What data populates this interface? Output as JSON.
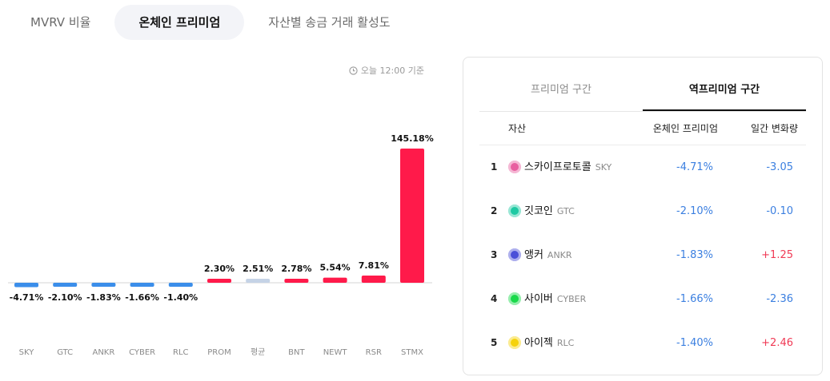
{
  "tabs": [
    {
      "label": "MVRV 비율",
      "active": false
    },
    {
      "label": "온체인 프리미엄",
      "active": true
    },
    {
      "label": "자산별 송금 거래 활성도",
      "active": false
    }
  ],
  "asof": {
    "label": "오늘 12:00 기준",
    "icon": "clock-icon"
  },
  "colors": {
    "positive_bar": "#ff1a4a",
    "negative_bar": "#3b8eea",
    "average_bar": "#c5d3e6",
    "negative_text": "#3b7fe0",
    "positive_text": "#f03a55"
  },
  "chart_data": {
    "type": "bar",
    "categories": [
      "SKY",
      "GTC",
      "ANKR",
      "CYBER",
      "RLC",
      "PROM",
      "평균",
      "BNT",
      "NEWT",
      "RSR",
      "STMX"
    ],
    "values": [
      -4.71,
      -2.1,
      -1.83,
      -1.66,
      -1.4,
      2.3,
      2.51,
      2.78,
      5.54,
      7.81,
      145.18
    ],
    "value_labels": [
      "-4.71%",
      "-2.10%",
      "-1.83%",
      "-1.66%",
      "-1.40%",
      "2.30%",
      "2.51%",
      "2.78%",
      "5.54%",
      "7.81%",
      "145.18%"
    ],
    "title": "",
    "xlabel": "",
    "ylabel": "",
    "grid": false
  },
  "panel": {
    "tabs": [
      {
        "label": "프리미엄 구간",
        "active": false
      },
      {
        "label": "역프리미엄 구간",
        "active": true
      }
    ],
    "columns": {
      "asset": "자산",
      "premium": "온체인 프리미엄",
      "change": "일간 변화량"
    },
    "rows": [
      {
        "rank": "1",
        "name": "스카이프로토콜",
        "symbol": "SKY",
        "premium": "-4.71%",
        "change": "-3.05",
        "icon": "sky-coin-icon",
        "icon_color": "#e85fa0"
      },
      {
        "rank": "2",
        "name": "깃코인",
        "symbol": "GTC",
        "premium": "-2.10%",
        "change": "-0.10",
        "icon": "gtc-coin-icon",
        "icon_color": "#1ec9a3"
      },
      {
        "rank": "3",
        "name": "앵커",
        "symbol": "ANKR",
        "premium": "-1.83%",
        "change": "+1.25",
        "icon": "ankr-coin-icon",
        "icon_color": "#4a4fd8"
      },
      {
        "rank": "4",
        "name": "사이버",
        "symbol": "CYBER",
        "premium": "-1.66%",
        "change": "-2.36",
        "icon": "cyber-coin-icon",
        "icon_color": "#19d94a"
      },
      {
        "rank": "5",
        "name": "아이젝",
        "symbol": "RLC",
        "premium": "-1.40%",
        "change": "+2.46",
        "icon": "rlc-coin-icon",
        "icon_color": "#f5d20b"
      }
    ]
  }
}
